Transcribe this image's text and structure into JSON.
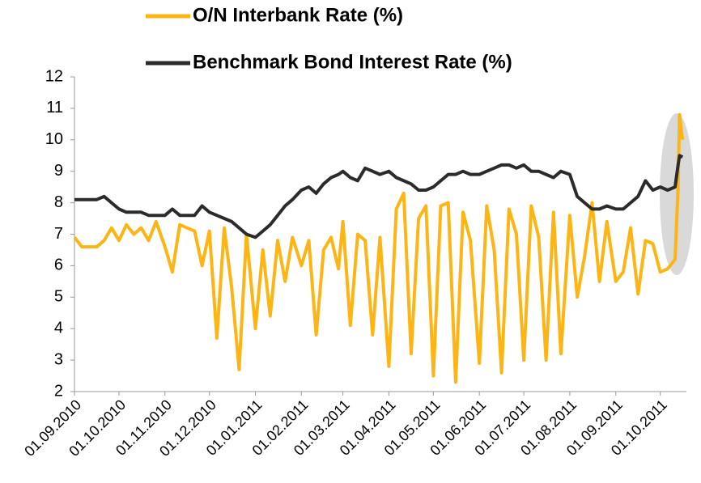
{
  "chart_data": {
    "type": "line",
    "x": [
      "01.09.2010",
      "06.09.2010",
      "11.09.2010",
      "16.09.2010",
      "21.09.2010",
      "26.09.2010",
      "01.10.2010",
      "06.10.2010",
      "11.10.2010",
      "16.10.2010",
      "21.10.2010",
      "26.10.2010",
      "01.11.2010",
      "06.11.2010",
      "11.11.2010",
      "16.11.2010",
      "21.11.2010",
      "26.11.2010",
      "01.12.2010",
      "06.12.2010",
      "11.12.2010",
      "16.12.2010",
      "21.12.2010",
      "26.12.2010",
      "01.01.2011",
      "06.01.2011",
      "11.01.2011",
      "16.01.2011",
      "21.01.2011",
      "26.01.2011",
      "01.02.2011",
      "06.02.2011",
      "11.02.2011",
      "16.02.2011",
      "21.02.2011",
      "26.02.2011",
      "01.03.2011",
      "06.03.2011",
      "11.03.2011",
      "16.03.2011",
      "21.03.2011",
      "26.03.2011",
      "01.04.2011",
      "06.04.2011",
      "11.04.2011",
      "16.04.2011",
      "21.04.2011",
      "26.04.2011",
      "01.05.2011",
      "06.05.2011",
      "11.05.2011",
      "16.05.2011",
      "21.05.2011",
      "26.05.2011",
      "01.06.2011",
      "06.06.2011",
      "11.06.2011",
      "16.06.2011",
      "21.06.2011",
      "26.06.2011",
      "01.07.2011",
      "06.07.2011",
      "11.07.2011",
      "16.07.2011",
      "21.07.2011",
      "26.07.2011",
      "01.08.2011",
      "06.08.2011",
      "11.08.2011",
      "16.08.2011",
      "21.08.2011",
      "26.08.2011",
      "01.09.2011",
      "06.09.2011",
      "11.09.2011",
      "16.09.2011",
      "21.09.2011",
      "26.09.2011",
      "01.10.2011",
      "06.10.2011",
      "11.10.2011",
      "13.10.2011",
      "14.10.2011",
      "16.10.2011"
    ],
    "series": [
      {
        "name": "O/N Interbank Rate (%)",
        "color": "#fdb515",
        "values": [
          6.9,
          6.6,
          6.6,
          6.6,
          6.8,
          7.2,
          6.8,
          7.3,
          7.0,
          7.2,
          6.8,
          7.4,
          6.6,
          5.8,
          7.3,
          7.2,
          7.1,
          6.0,
          7.1,
          3.7,
          7.2,
          5.3,
          2.7,
          7.0,
          4.0,
          6.5,
          4.4,
          6.8,
          5.5,
          6.9,
          6.0,
          6.8,
          3.8,
          6.5,
          6.9,
          5.9,
          7.4,
          4.1,
          7.0,
          6.8,
          3.8,
          6.9,
          2.8,
          7.8,
          8.3,
          3.2,
          7.5,
          7.9,
          2.5,
          7.9,
          8.0,
          2.3,
          7.7,
          6.8,
          2.9,
          7.9,
          6.5,
          2.6,
          7.8,
          7.0,
          3.0,
          7.9,
          6.9,
          3.0,
          7.7,
          3.2,
          7.6,
          5.0,
          6.3,
          8.0,
          5.5,
          7.4,
          5.5,
          5.8,
          7.2,
          5.1,
          6.8,
          6.7,
          5.8,
          5.9,
          6.2,
          8.5,
          10.8,
          10.0
        ]
      },
      {
        "name": "Benchmark Bond Interest Rate (%)",
        "color": "#2b2b2b",
        "values": [
          8.1,
          8.1,
          8.1,
          8.1,
          8.2,
          8.0,
          7.8,
          7.7,
          7.7,
          7.7,
          7.6,
          7.6,
          7.6,
          7.8,
          7.6,
          7.6,
          7.6,
          7.9,
          7.7,
          7.6,
          7.5,
          7.4,
          7.2,
          7.0,
          6.9,
          7.1,
          7.3,
          7.6,
          7.9,
          8.1,
          8.4,
          8.5,
          8.3,
          8.6,
          8.8,
          8.9,
          9.0,
          8.8,
          8.7,
          9.1,
          9.0,
          8.9,
          9.0,
          8.8,
          8.7,
          8.6,
          8.4,
          8.4,
          8.5,
          8.7,
          8.9,
          8.9,
          9.0,
          8.9,
          8.9,
          9.0,
          9.1,
          9.2,
          9.2,
          9.1,
          9.2,
          9.0,
          9.0,
          8.9,
          8.8,
          9.0,
          8.9,
          8.2,
          8.0,
          7.8,
          7.8,
          7.9,
          7.8,
          7.8,
          8.0,
          8.2,
          8.7,
          8.4,
          8.5,
          8.4,
          8.5,
          9.2,
          9.5,
          9.45
        ]
      }
    ],
    "xlim": [
      "01.09.2010",
      "17.10.2011"
    ],
    "xticks": [
      "01.09.2010",
      "01.10.2010",
      "01.11.2010",
      "01.12.2010",
      "01.01.2011",
      "01.02.2011",
      "01.03.2011",
      "01.04.2011",
      "01.05.2011",
      "01.06.2011",
      "01.07.2011",
      "01.08.2011",
      "01.09.2011",
      "01.10.2011"
    ],
    "ylim": [
      2,
      12
    ],
    "yticks": [
      2,
      3,
      4,
      5,
      6,
      7,
      8,
      9,
      10,
      11,
      12
    ]
  }
}
